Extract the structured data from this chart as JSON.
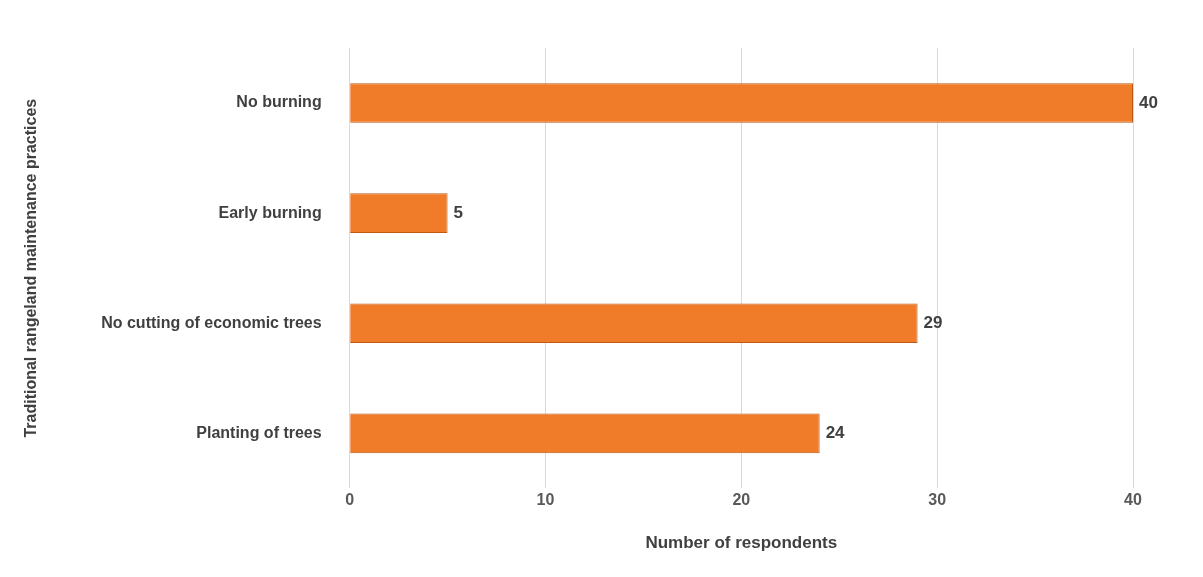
{
  "chart_data": {
    "type": "bar",
    "orientation": "horizontal",
    "xlabel": "Number of respondents",
    "ylabel": "Traditional rangeland maintenance practices",
    "categories": [
      "No burning",
      "Early burning",
      "No cutting of economic trees",
      "Planting of trees"
    ],
    "values": [
      40,
      5,
      29,
      24
    ],
    "color": "#f07c2a",
    "xlim": [
      0,
      40
    ],
    "xticks": [
      0,
      10,
      20,
      30,
      40
    ],
    "grid": "x",
    "data_labels": true
  }
}
